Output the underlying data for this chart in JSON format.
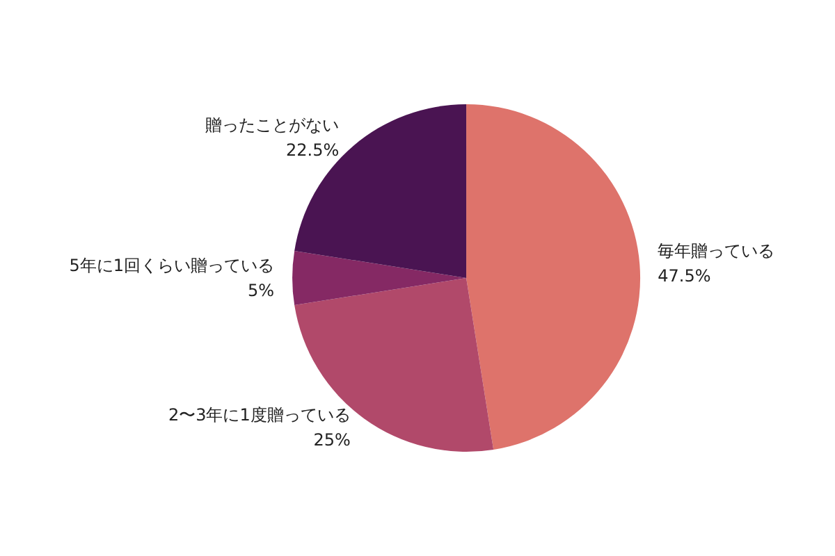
{
  "chart_data": {
    "type": "pie",
    "categories": [
      "毎年贈っている",
      "2〜3年に1度贈っている",
      "5年に1回くらい贈っている",
      "贈ったことがない"
    ],
    "values": [
      47.5,
      25,
      5,
      22.5
    ],
    "value_labels": [
      "47.5%",
      "25%",
      "5%",
      "22.5%"
    ],
    "colors": [
      "#de736b",
      "#b1496a",
      "#852964",
      "#4a1452"
    ]
  }
}
